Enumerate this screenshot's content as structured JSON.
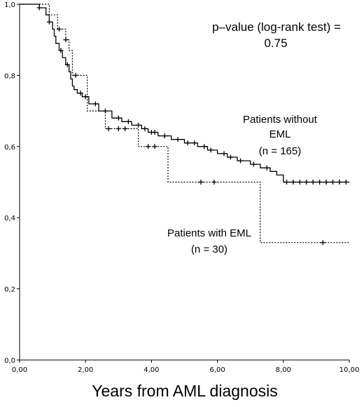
{
  "chart_data": {
    "type": "line",
    "subtype": "kaplan-meier",
    "xlabel": "Years from AML diagnosis",
    "ylabel": "",
    "xlim": [
      0,
      10
    ],
    "ylim": [
      0,
      1
    ],
    "x_ticks": [
      "0,00",
      "2,00",
      "4,00",
      "6,00",
      "8,00",
      "10,00"
    ],
    "y_ticks": [
      "0,0",
      "0,2",
      "0,4",
      "0,6",
      "0,8",
      "1,0"
    ],
    "grid": false,
    "annotations": {
      "pvalue_line1": "p–value (log-rank test) =",
      "pvalue_line2": "0.75",
      "without_line1": "Patients without",
      "without_line2": "EML",
      "without_line3": "(n = 165)",
      "with_line1": "Patients with EML",
      "with_line2": "(n = 30)"
    },
    "series": [
      {
        "name": "Patients without EML",
        "style": "solid",
        "color": "#000000",
        "x": [
          0,
          0.6,
          0.8,
          0.9,
          1.0,
          1.05,
          1.1,
          1.2,
          1.3,
          1.4,
          1.5,
          1.55,
          1.6,
          1.65,
          1.75,
          1.9,
          2.1,
          2.4,
          2.8,
          3.1,
          3.4,
          3.7,
          3.9,
          4.2,
          4.6,
          5.0,
          5.4,
          5.7,
          6.0,
          6.3,
          6.6,
          7.0,
          7.3,
          7.6,
          7.8,
          8.0,
          10.0
        ],
        "y": [
          1.0,
          0.99,
          0.97,
          0.95,
          0.93,
          0.91,
          0.89,
          0.87,
          0.85,
          0.83,
          0.81,
          0.79,
          0.77,
          0.76,
          0.75,
          0.74,
          0.72,
          0.7,
          0.68,
          0.67,
          0.66,
          0.65,
          0.64,
          0.63,
          0.62,
          0.61,
          0.6,
          0.59,
          0.58,
          0.57,
          0.56,
          0.55,
          0.54,
          0.53,
          0.52,
          0.5,
          0.5
        ],
        "censored_x": [
          0.6,
          0.9,
          1.25,
          1.45,
          1.85,
          2.0,
          2.3,
          2.6,
          3.0,
          3.3,
          3.6,
          3.8,
          4.0,
          4.1,
          4.4,
          4.8,
          5.1,
          5.3,
          5.6,
          5.8,
          6.2,
          6.4,
          6.7,
          7.1,
          7.5,
          8.1,
          8.3,
          8.5,
          8.7,
          8.9,
          9.1,
          9.3,
          9.5,
          9.7,
          9.9
        ]
      },
      {
        "name": "Patients with EML",
        "style": "dotted",
        "color": "#000000",
        "x": [
          0,
          0.9,
          1.15,
          1.4,
          1.5,
          1.6,
          1.95,
          2.05,
          2.4,
          2.6,
          3.0,
          3.6,
          4.5,
          7.3,
          10.0
        ],
        "y": [
          1.0,
          0.97,
          0.93,
          0.9,
          0.87,
          0.8,
          0.8,
          0.7,
          0.7,
          0.65,
          0.65,
          0.6,
          0.5,
          0.33,
          0.33
        ],
        "censored_x": [
          1.2,
          1.4,
          1.7,
          2.7,
          3.0,
          3.2,
          3.9,
          4.1,
          5.5,
          5.9,
          9.2
        ]
      }
    ]
  }
}
